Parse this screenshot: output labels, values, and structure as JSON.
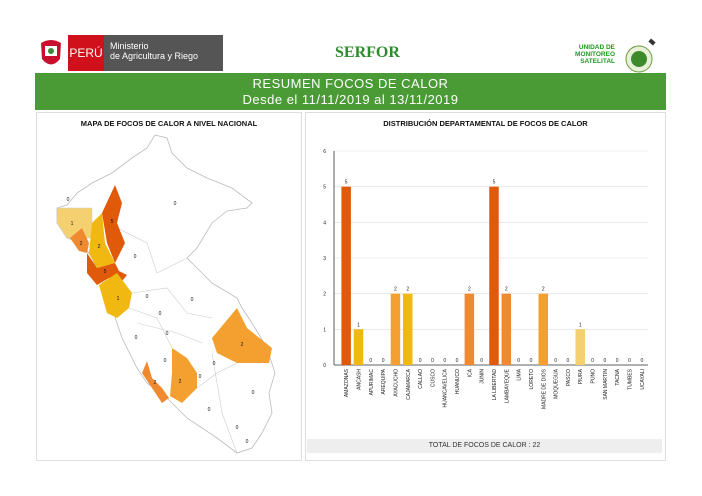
{
  "header": {
    "peru_label": "PERÚ",
    "ministry_line1": "Ministerio",
    "ministry_line2": "de Agricultura y Riego",
    "serfor_logo": "SERFOR",
    "unit_label_1": "UNIDAD DE",
    "unit_label_2": "MONITOREO",
    "unit_label_3": "SATELITAL"
  },
  "banner": {
    "title": "RESUMEN FOCOS DE CALOR",
    "subtitle": "Desde el 11/11/2019 al 13/11/2019"
  },
  "map": {
    "title": "MAPA DE FOCOS DE CALOR A NIVEL NACIONAL"
  },
  "chart_data": {
    "type": "bar",
    "title": "DISTRIBUCIÓN DEPARTAMENTAL DE FOCOS DE CALOR",
    "xlabel": "",
    "ylabel": "",
    "ylim": [
      0,
      6
    ],
    "yticks": [
      0,
      1,
      2,
      3,
      4,
      5,
      6
    ],
    "grid": true,
    "categories": [
      "AMAZONAS",
      "ANCASH",
      "APURIMAC",
      "AREQUIPA",
      "AYACUCHO",
      "CAJAMARCA",
      "CALLAO",
      "CUSCO",
      "HUANCAVELICA",
      "HUANUCO",
      "ICA",
      "JUNIN",
      "LA LIBERTAD",
      "LAMBAYEQUE",
      "LIMA",
      "LORETO",
      "MADRE DE DIOS",
      "MOQUEGUA",
      "PASCO",
      "PIURA",
      "PUNO",
      "SAN MARTIN",
      "TACNA",
      "TUMBES",
      "UCAYALI"
    ],
    "values": [
      5,
      1,
      0,
      0,
      2,
      2,
      0,
      0,
      0,
      0,
      2,
      0,
      5,
      2,
      0,
      0,
      2,
      0,
      0,
      1,
      0,
      0,
      0,
      0,
      0
    ],
    "colors": [
      "#e05a0a",
      "#f0b810",
      "#f4a030",
      "#f4a030",
      "#f4a030",
      "#f0b810",
      "#f4a030",
      "#f4a030",
      "#f4a030",
      "#f4a030",
      "#f08a30",
      "#f4a030",
      "#e05a0a",
      "#f08a30",
      "#f4a030",
      "#f4a030",
      "#f4a030",
      "#f4a030",
      "#f4a030",
      "#f5d070",
      "#f4a030",
      "#f4a030",
      "#f4a030",
      "#f4a030",
      "#f4a030"
    ]
  },
  "total": "TOTAL DE FOCOS DE CALOR : 22"
}
